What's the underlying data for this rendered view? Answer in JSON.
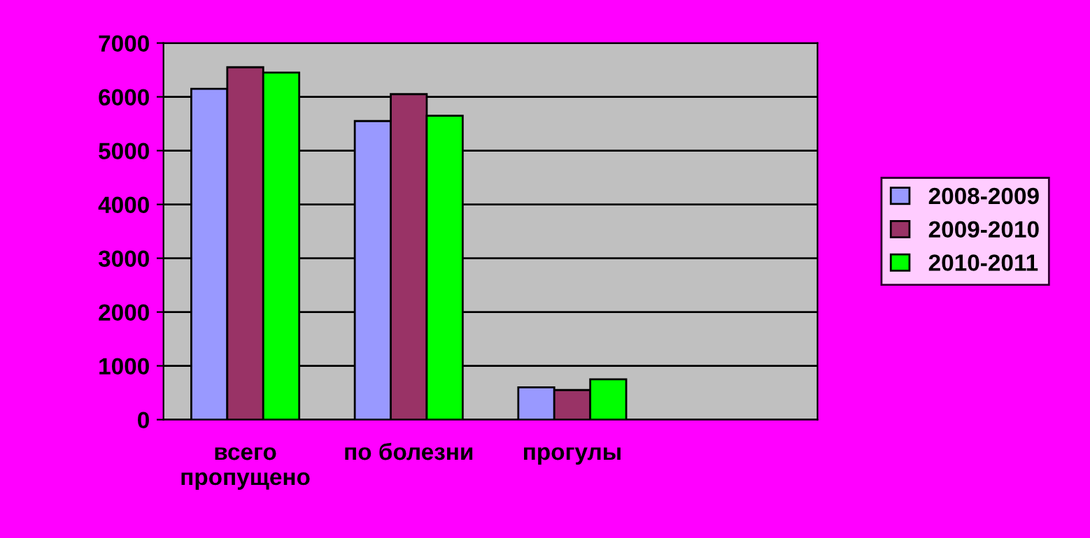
{
  "chart_data": {
    "type": "bar",
    "categories": [
      "всего\nпропущено",
      "по болезни",
      "прогулы",
      null
    ],
    "series": [
      {
        "name": "2008-2009",
        "color": "#9999ff",
        "values": [
          6150,
          5550,
          600,
          null
        ]
      },
      {
        "name": "2009-2010",
        "color": "#993366",
        "values": [
          6550,
          6050,
          550,
          null
        ]
      },
      {
        "name": "2010-2011",
        "color": "#00ff00",
        "values": [
          6450,
          5650,
          750,
          null
        ]
      }
    ],
    "ylim": [
      0,
      7000
    ],
    "yticks": [
      0,
      1000,
      2000,
      3000,
      4000,
      5000,
      6000,
      7000
    ],
    "grid": "y",
    "legend": "right"
  }
}
